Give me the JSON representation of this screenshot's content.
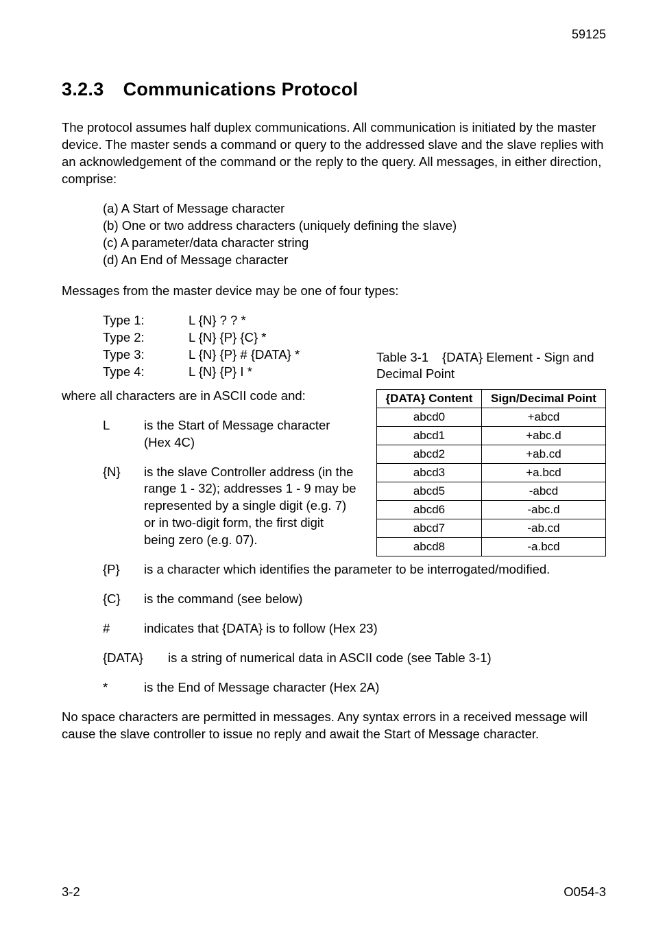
{
  "page": {
    "topRight": "59125",
    "bottomLeft": "3-2",
    "bottomRight": "O054-3"
  },
  "heading": {
    "num": "3.2.3",
    "title": "Communications Protocol"
  },
  "intro": "The protocol assumes half duplex communications. All communication is initiated by the master device. The master sends a command or query to the addressed slave and the slave replies with an acknowledgement of the command or the reply to the query. All messages, in either direction, comprise:",
  "abc": {
    "a": "(a) A Start of Message character",
    "b": "(b) One or two address characters (uniquely defining the slave)",
    "c": "(c) A parameter/data character string",
    "d": "(d) An End of Message character"
  },
  "typesIntro": "Messages from the master device may be one of four types:",
  "types": {
    "l1": "Type 1:",
    "v1": "L {N} ? ? *",
    "l2": "Type 2:",
    "v2": "L {N} {P} {C} *",
    "l3": "Type 3:",
    "v3": "L {N} {P} # {DATA} *",
    "l4": "Type 4:",
    "v4": "L {N} {P} I *"
  },
  "whereIntro": "where all characters are in ASCII code and:",
  "tableCaption": {
    "label": "Table 3-1",
    "text": "{DATA} Element - Sign and Decimal Point"
  },
  "table": {
    "h1": "{DATA} Content",
    "h2": "Sign/Decimal Point",
    "r": [
      [
        "abcd0",
        "+abcd"
      ],
      [
        "abcd1",
        "+abc.d"
      ],
      [
        "abcd2",
        "+ab.cd"
      ],
      [
        "abcd3",
        "+a.bcd"
      ],
      [
        "abcd5",
        "-abcd"
      ],
      [
        "abcd6",
        "-abc.d"
      ],
      [
        "abcd7",
        "-ab.cd"
      ],
      [
        "abcd8",
        "-a.bcd"
      ]
    ]
  },
  "defs": {
    "L": {
      "t": "L",
      "b": "is the Start of Message character (Hex 4C)"
    },
    "N": {
      "t": "{N}",
      "b": "is the slave Controller address (in the range 1 - 32); addresses 1 - 9 may be represented by a single digit (e.g. 7) or in two-digit form, the first digit being zero (e.g. 07)."
    },
    "P": {
      "t": "{P}",
      "b": "is a character which identifies the parameter to be interrogated/modified."
    },
    "C": {
      "t": "{C}",
      "b": "is the command (see below)"
    },
    "H": {
      "t": "#",
      "b": "indicates that {DATA} is to follow (Hex 23)"
    },
    "D": {
      "t": "{DATA}",
      "b": "is a string of numerical data in ASCII code (see Table 3-1)"
    },
    "S": {
      "t": "*",
      "b": "is the End of Message character (Hex 2A)"
    }
  },
  "closing": "No space characters are permitted in messages. Any syntax errors in a received message will cause the slave controller to issue no reply and await the Start of Message character."
}
